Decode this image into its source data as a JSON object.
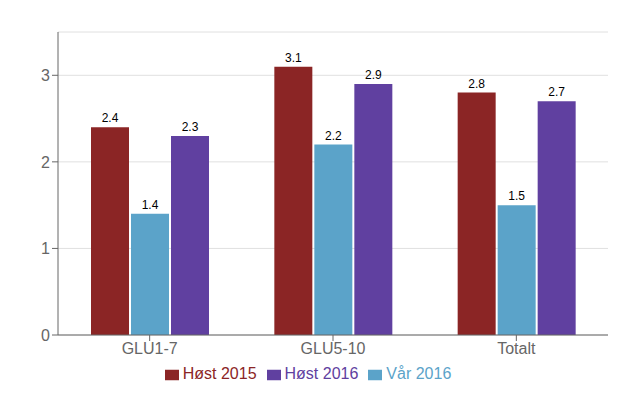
{
  "chart_data": {
    "type": "bar",
    "categories": [
      "GLU1-7",
      "GLU5-10",
      "Totalt"
    ],
    "series": [
      {
        "name": "Høst 2015",
        "color": "#8B2525",
        "values": [
          2.4,
          3.1,
          2.8
        ]
      },
      {
        "name": "Vår 2016",
        "color": "#5BA3C9",
        "values": [
          1.4,
          2.2,
          1.5
        ]
      },
      {
        "name": "Høst 2016",
        "color": "#6040A0",
        "values": [
          2.3,
          2.9,
          2.7
        ]
      }
    ],
    "ylim": [
      0,
      3.5
    ],
    "yticks": [
      0,
      1,
      2,
      3
    ],
    "grid": true,
    "legend": "bottom",
    "data_labels": true
  }
}
